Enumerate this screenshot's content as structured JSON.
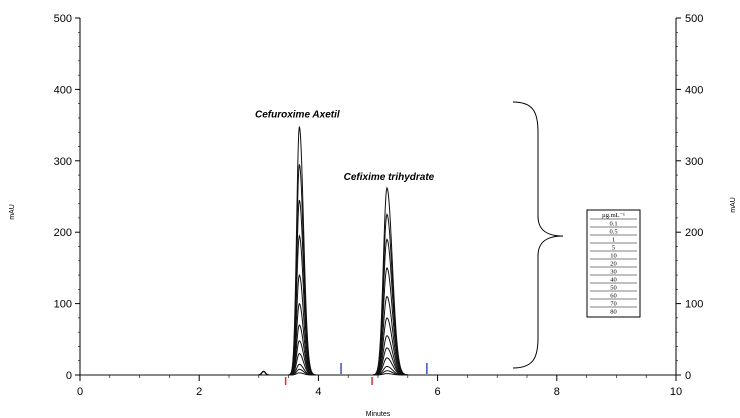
{
  "chart_data": {
    "type": "line",
    "title": "",
    "xlabel": "Minutes",
    "ylabel": "mAU",
    "ylabel_right": "mAU",
    "xlim": [
      0,
      10
    ],
    "ylim": [
      0,
      500
    ],
    "x_ticks": [
      "0",
      "2",
      "4",
      "6",
      "8",
      "10"
    ],
    "y_ticks": [
      "0",
      "100",
      "200",
      "300",
      "400",
      "500"
    ],
    "grid": false,
    "peaks": [
      {
        "name": "Cefuroxime Axetil",
        "retention_time": 3.68,
        "max_height": 348
      },
      {
        "name": "Cefixime trihydrate",
        "retention_time": 5.15,
        "max_height": 262
      }
    ],
    "legend": {
      "title": "µg.mL⁻¹",
      "placement": "right",
      "entries": [
        "0.1",
        "0.5",
        "1",
        "5",
        "10",
        "20",
        "30",
        "40",
        "50",
        "60",
        "70",
        "80"
      ]
    },
    "series_heights": [
      {
        "concentration": "0.1",
        "cefuroxime": 3,
        "cefixime": 2
      },
      {
        "concentration": "0.5",
        "cefuroxime": 8,
        "cefixime": 6
      },
      {
        "concentration": "1",
        "cefuroxime": 15,
        "cefixime": 12
      },
      {
        "concentration": "5",
        "cefuroxime": 30,
        "cefixime": 24
      },
      {
        "concentration": "10",
        "cefuroxime": 48,
        "cefixime": 38
      },
      {
        "concentration": "20",
        "cefuroxime": 70,
        "cefixime": 55
      },
      {
        "concentration": "30",
        "cefuroxime": 100,
        "cefixime": 80
      },
      {
        "concentration": "40",
        "cefuroxime": 140,
        "cefixime": 110
      },
      {
        "concentration": "50",
        "cefuroxime": 195,
        "cefixime": 150
      },
      {
        "concentration": "60",
        "cefuroxime": 245,
        "cefixime": 190
      },
      {
        "concentration": "70",
        "cefuroxime": 295,
        "cefixime": 225
      },
      {
        "concentration": "80",
        "cefuroxime": 348,
        "cefixime": 262
      }
    ],
    "baseline_markers": [
      {
        "x": 3.45,
        "color": "#e03030"
      },
      {
        "x": 4.38,
        "color": "#3050e0"
      },
      {
        "x": 4.9,
        "color": "#e03030"
      },
      {
        "x": 5.82,
        "color": "#3050e0"
      }
    ],
    "small_peak": {
      "x": 3.08,
      "height": 5
    }
  }
}
